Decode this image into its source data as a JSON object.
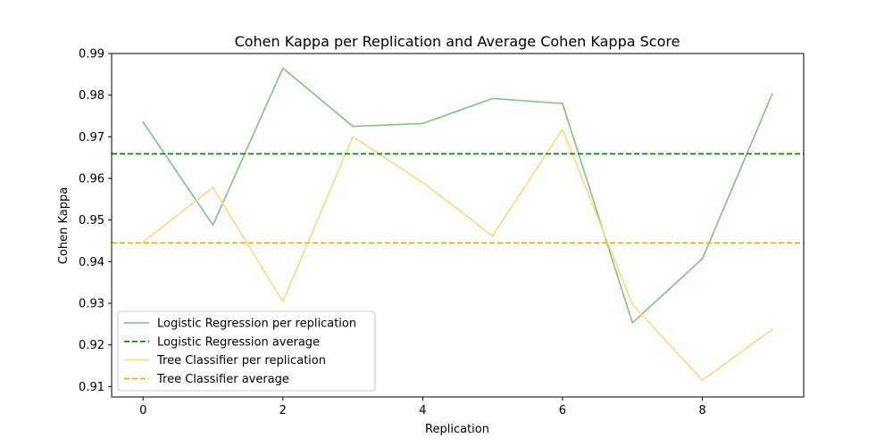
{
  "chart_data": {
    "type": "line",
    "title": "Cohen Kappa per Replication and Average Cohen Kappa Score",
    "xlabel": "Replication",
    "ylabel": "Cohen Kappa",
    "xlim": [
      -0.45,
      9.45
    ],
    "ylim": [
      0.9075,
      0.99
    ],
    "xticks": [
      0,
      2,
      4,
      6,
      8
    ],
    "yticks": [
      0.91,
      0.92,
      0.93,
      0.94,
      0.95,
      0.96,
      0.97,
      0.98,
      0.99
    ],
    "x": [
      0,
      1,
      2,
      3,
      4,
      5,
      6,
      7,
      8,
      9
    ],
    "series": [
      {
        "name": "Logistic Regression per replication",
        "kind": "line",
        "color": "#81c281",
        "values": [
          0.9735,
          0.9488,
          0.9865,
          0.9725,
          0.9732,
          0.9792,
          0.978,
          0.9253,
          0.9407,
          0.9803
        ]
      },
      {
        "name": "Tree Classifier per replication",
        "kind": "line",
        "color": "#ffd685",
        "values": [
          0.9447,
          0.9578,
          0.9304,
          0.97,
          0.959,
          0.9462,
          0.9718,
          0.9297,
          0.9115,
          0.9237
        ]
      }
    ],
    "averages": [
      {
        "name": "Logistic Regression average",
        "kind": "dashed",
        "color": "#008000",
        "value": 0.9659
      },
      {
        "name": "Tree Classifier average",
        "kind": "dashed",
        "color": "#ffa500",
        "value": 0.9445
      }
    ],
    "legend_position": "lower-left",
    "grid": false
  }
}
